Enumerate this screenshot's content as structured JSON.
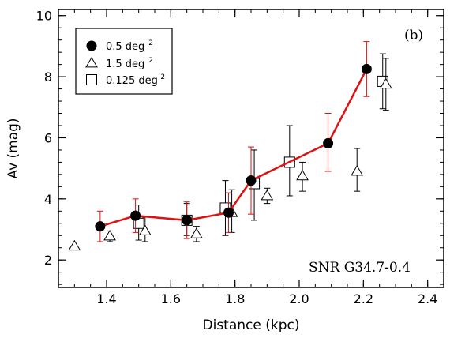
{
  "chart_data": {
    "type": "scatter",
    "xlabel": "Distance (kpc)",
    "ylabel": "Av (mag)",
    "xlim": [
      1.25,
      2.45
    ],
    "ylim": [
      1.1,
      10.2
    ],
    "x_ticks": [
      1.4,
      1.6,
      1.8,
      2.0,
      2.2,
      2.4
    ],
    "x_tick_labels": [
      "1.4",
      "1.6",
      "1.8",
      "2.0",
      "2.2",
      "2.4"
    ],
    "y_ticks": [
      2,
      4,
      6,
      8,
      10
    ],
    "y_tick_labels": [
      "2",
      "4",
      "6",
      "8",
      "10"
    ],
    "panel_label": "(b)",
    "annotation": "SNR G34.7-0.4",
    "legend": {
      "placement": "top-left",
      "entries": [
        {
          "marker": "filled-circle",
          "label": "0.5 deg",
          "sup": "2"
        },
        {
          "marker": "open-triangle",
          "label": "1.5 deg",
          "sup": "2"
        },
        {
          "marker": "open-square",
          "label": "0.125 deg",
          "sup": "2"
        }
      ]
    },
    "series": [
      {
        "name": "0.5 deg2",
        "marker": "filled-circle",
        "connected": true,
        "line_color": "#dd1111",
        "errorbar_color": "#dd1111",
        "points": [
          {
            "x": 1.38,
            "y": 3.1,
            "lo": 2.6,
            "hi": 3.6
          },
          {
            "x": 1.49,
            "y": 3.45,
            "lo": 2.9,
            "hi": 4.0
          },
          {
            "x": 1.65,
            "y": 3.3,
            "lo": 2.7,
            "hi": 3.9
          },
          {
            "x": 1.78,
            "y": 3.55,
            "lo": 2.9,
            "hi": 4.2
          },
          {
            "x": 1.85,
            "y": 4.6,
            "lo": 3.5,
            "hi": 5.7
          },
          {
            "x": 2.09,
            "y": 5.82,
            "lo": 4.9,
            "hi": 6.8
          },
          {
            "x": 2.21,
            "y": 8.25,
            "lo": 7.35,
            "hi": 9.15
          }
        ]
      },
      {
        "name": "1.5 deg2",
        "marker": "open-triangle",
        "connected": false,
        "errorbar_color": "#000000",
        "points": [
          {
            "x": 1.3,
            "y": 2.45,
            "lo": null,
            "hi": null
          },
          {
            "x": 1.41,
            "y": 2.78,
            "lo": 2.6,
            "hi": 2.95
          },
          {
            "x": 1.52,
            "y": 2.95,
            "lo": 2.6,
            "hi": 3.4
          },
          {
            "x": 1.68,
            "y": 2.85,
            "lo": 2.6,
            "hi": 3.1
          },
          {
            "x": 1.79,
            "y": 3.55,
            "lo": 2.9,
            "hi": 4.3
          },
          {
            "x": 1.9,
            "y": 4.1,
            "lo": 3.85,
            "hi": 4.35
          },
          {
            "x": 2.01,
            "y": 4.75,
            "lo": 4.25,
            "hi": 5.2
          },
          {
            "x": 2.18,
            "y": 4.9,
            "lo": 4.25,
            "hi": 5.65
          },
          {
            "x": 2.27,
            "y": 7.75,
            "lo": 6.9,
            "hi": 8.6
          }
        ]
      },
      {
        "name": "0.125 deg2",
        "marker": "open-square",
        "connected": false,
        "errorbar_color": "#000000",
        "points": [
          {
            "x": 1.5,
            "y": 3.2,
            "lo": 2.65,
            "hi": 3.8
          },
          {
            "x": 1.65,
            "y": 3.3,
            "lo": 2.8,
            "hi": 3.85
          },
          {
            "x": 1.77,
            "y": 3.7,
            "lo": 2.8,
            "hi": 4.6
          },
          {
            "x": 1.86,
            "y": 4.5,
            "lo": 3.3,
            "hi": 5.6
          },
          {
            "x": 1.97,
            "y": 5.2,
            "lo": 4.1,
            "hi": 6.4
          },
          {
            "x": 2.26,
            "y": 7.85,
            "lo": 6.95,
            "hi": 8.75
          }
        ]
      }
    ]
  }
}
